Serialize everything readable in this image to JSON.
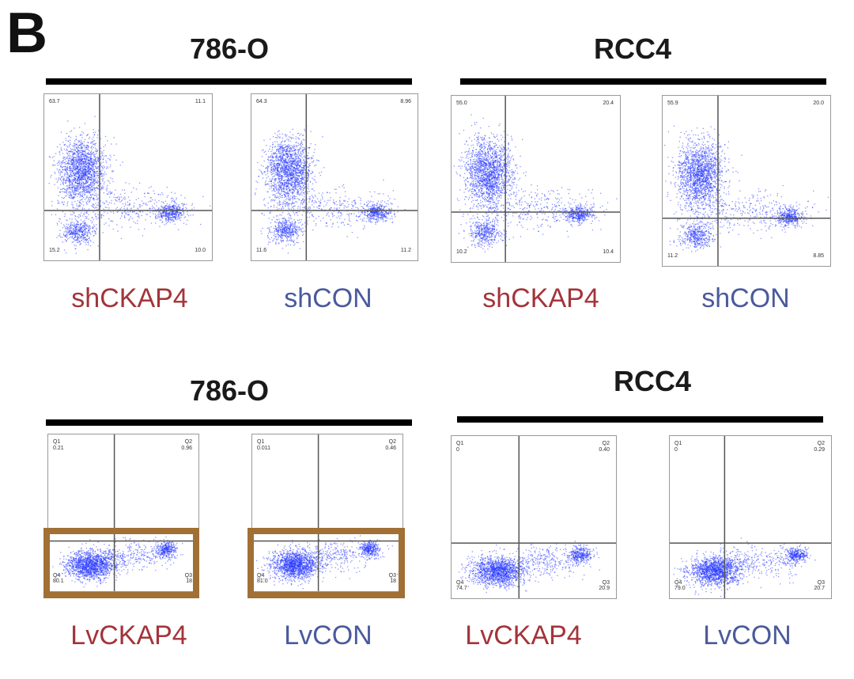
{
  "panel_letter": "B",
  "colors": {
    "knockdown": "#a3343a",
    "control": "#4a5a9c",
    "points": "#2a3bff",
    "highlight": "#a07035"
  },
  "groups": [
    {
      "title": "786-O"
    },
    {
      "title": "RCC4"
    },
    {
      "title": "786-O"
    },
    {
      "title": "RCC4"
    }
  ],
  "plots": [
    {
      "label": "shCKAP4",
      "tone": "knockdown",
      "q_ul": "63.7",
      "q_ur": "11.1",
      "q_ll": "15.2",
      "q_lr": "10.0"
    },
    {
      "label": "shCON",
      "tone": "control",
      "q_ul": "64.3",
      "q_ur": "8.96",
      "q_ll": "11.6",
      "q_lr": "11.2"
    },
    {
      "label": "shCKAP4",
      "tone": "knockdown",
      "q_ul": "55.0",
      "q_ur": "20.4",
      "q_ll": "10.2",
      "q_lr": "10.4"
    },
    {
      "label": "shCON",
      "tone": "control",
      "q_ul": "55.9",
      "q_ur": "20.0",
      "q_ll": "11.2",
      "q_lr": "8.85"
    },
    {
      "label": "LvCKAP4",
      "tone": "knockdown",
      "q_ul": "Q1\n0.21",
      "q_ur": "Q2\n0.96",
      "q_ll": "Q4\n80.1",
      "q_lr": "Q3\n18"
    },
    {
      "label": "LvCON",
      "tone": "control",
      "q_ul": "Q1\n0.011",
      "q_ur": "Q2\n0.46",
      "q_ll": "Q4\n81.0",
      "q_lr": "Q3\n18"
    },
    {
      "label": "LvCKAP4",
      "tone": "knockdown",
      "q_ul": "Q1\n0",
      "q_ur": "Q2\n0.40",
      "q_ll": "Q4\n74.7",
      "q_lr": "Q3\n20.9"
    },
    {
      "label": "LvCON",
      "tone": "control",
      "q_ul": "Q1\n0",
      "q_ur": "Q2\n0.29",
      "q_ll": "Q4\n79.0",
      "q_lr": "Q3\n20.7"
    }
  ],
  "chart_data": [
    {
      "type": "scatter",
      "title": "786-O shCKAP4",
      "quadrants": {
        "upper_left": 63.7,
        "upper_right": 11.1,
        "lower_left": 15.2,
        "lower_right": 10.0
      }
    },
    {
      "type": "scatter",
      "title": "786-O shCON",
      "quadrants": {
        "upper_left": 64.3,
        "upper_right": 8.96,
        "lower_left": 11.6,
        "lower_right": 11.2
      }
    },
    {
      "type": "scatter",
      "title": "RCC4 shCKAP4",
      "quadrants": {
        "upper_left": 55.0,
        "upper_right": 20.4,
        "lower_left": 10.2,
        "lower_right": 10.4
      }
    },
    {
      "type": "scatter",
      "title": "RCC4 shCON",
      "quadrants": {
        "upper_left": 55.9,
        "upper_right": 20.0,
        "lower_left": 11.2,
        "lower_right": 8.85
      }
    },
    {
      "type": "scatter",
      "title": "786-O LvCKAP4",
      "quadrants": {
        "Q1": 0.21,
        "Q2": 0.96,
        "Q3": 18,
        "Q4": 80.1
      }
    },
    {
      "type": "scatter",
      "title": "786-O LvCON",
      "quadrants": {
        "Q1": 0.011,
        "Q2": 0.46,
        "Q3": 18,
        "Q4": 81.0
      }
    },
    {
      "type": "scatter",
      "title": "RCC4 LvCKAP4",
      "quadrants": {
        "Q1": 0,
        "Q2": 0.4,
        "Q3": 20.9,
        "Q4": 74.7
      }
    },
    {
      "type": "scatter",
      "title": "RCC4 LvCON",
      "quadrants": {
        "Q1": 0,
        "Q2": 0.29,
        "Q3": 20.7,
        "Q4": 79.0
      }
    }
  ]
}
